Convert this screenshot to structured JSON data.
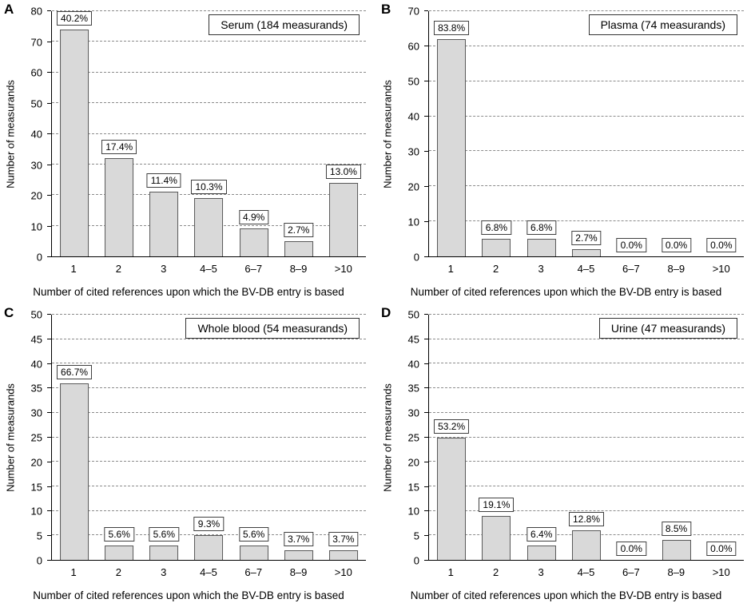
{
  "colors": {
    "bar_fill": "#d9d9d9",
    "bar_border": "#595959",
    "gridline": "#8c8c8c",
    "background": "#ffffff"
  },
  "chart_data": [
    {
      "type": "bar",
      "panel_label": "A",
      "title": "Serum (184 measurands)",
      "categories": [
        "1",
        "2",
        "3",
        "4–5",
        "6–7",
        "8–9",
        ">10"
      ],
      "values": [
        74,
        32,
        21,
        19,
        9,
        5,
        24
      ],
      "labels": [
        "40.2%",
        "17.4%",
        "11.4%",
        "10.3%",
        "4.9%",
        "2.7%",
        "13.0%"
      ],
      "xlabel": "Number of cited references upon which the BV-DB entry is based",
      "ylabel": "Number of measurands",
      "ylim": [
        0,
        80
      ],
      "ystep": 10,
      "grid": "dashed-horizontal",
      "legend": "none"
    },
    {
      "type": "bar",
      "panel_label": "B",
      "title": "Plasma (74 measurands)",
      "categories": [
        "1",
        "2",
        "3",
        "4–5",
        "6–7",
        "8–9",
        ">10"
      ],
      "values": [
        62,
        5,
        5,
        2,
        0,
        0,
        0
      ],
      "labels": [
        "83.8%",
        "6.8%",
        "6.8%",
        "2.7%",
        "0.0%",
        "0.0%",
        "0.0%"
      ],
      "xlabel": "Number of cited references upon which the BV-DB entry is based",
      "ylabel": "Number of measurands",
      "ylim": [
        0,
        70
      ],
      "ystep": 10,
      "grid": "dashed-horizontal",
      "legend": "none"
    },
    {
      "type": "bar",
      "panel_label": "C",
      "title": "Whole blood (54 measurands)",
      "categories": [
        "1",
        "2",
        "3",
        "4–5",
        "6–7",
        "8–9",
        ">10"
      ],
      "values": [
        36,
        3,
        3,
        5,
        3,
        2,
        2
      ],
      "labels": [
        "66.7%",
        "5.6%",
        "5.6%",
        "9.3%",
        "5.6%",
        "3.7%",
        "3.7%"
      ],
      "xlabel": "Number of cited references upon which the BV-DB entry is based",
      "ylabel": "Number of measurands",
      "ylim": [
        0,
        50
      ],
      "ystep": 5,
      "grid": "dashed-horizontal",
      "legend": "none"
    },
    {
      "type": "bar",
      "panel_label": "D",
      "title": "Urine (47 measurands)",
      "categories": [
        "1",
        "2",
        "3",
        "4–5",
        "6–7",
        "8–9",
        ">10"
      ],
      "values": [
        25,
        9,
        3,
        6,
        0,
        4,
        0
      ],
      "labels": [
        "53.2%",
        "19.1%",
        "6.4%",
        "12.8%",
        "0.0%",
        "8.5%",
        "0.0%"
      ],
      "xlabel": "Number of cited references upon which the BV-DB entry is based",
      "ylabel": "Number of measurands",
      "ylim": [
        0,
        50
      ],
      "ystep": 5,
      "grid": "dashed-horizontal",
      "legend": "none"
    }
  ]
}
